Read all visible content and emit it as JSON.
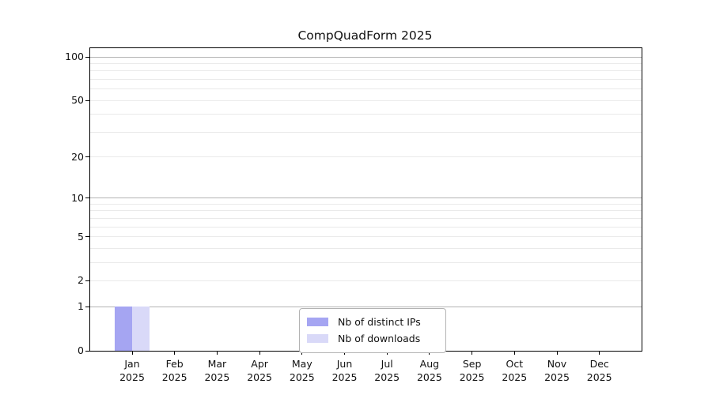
{
  "title": "CompQuadForm 2025",
  "chart_data": {
    "type": "bar",
    "title": "CompQuadForm 2025",
    "categories": [
      "Jan 2025",
      "Feb 2025",
      "Mar 2025",
      "Apr 2025",
      "May 2025",
      "Jun 2025",
      "Jul 2025",
      "Aug 2025",
      "Sep 2025",
      "Oct 2025",
      "Nov 2025",
      "Dec 2025"
    ],
    "month_labels": [
      "Jan",
      "Feb",
      "Mar",
      "Apr",
      "May",
      "Jun",
      "Jul",
      "Aug",
      "Sep",
      "Oct",
      "Nov",
      "Dec"
    ],
    "year_label": "2025",
    "series": [
      {
        "name": "Nb of distinct IPs",
        "color": "#a5a5f2",
        "values": [
          1,
          0,
          0,
          0,
          0,
          0,
          0,
          0,
          0,
          0,
          0,
          0
        ]
      },
      {
        "name": "Nb of downloads",
        "color": "#d9d9f8",
        "values": [
          1,
          0,
          0,
          0,
          0,
          0,
          0,
          0,
          0,
          0,
          0,
          0
        ]
      }
    ],
    "y_axis": {
      "scale": "log1p",
      "tick_values": [
        0,
        1,
        2,
        5,
        10,
        20,
        50,
        100
      ],
      "tick_labels": [
        "0",
        "1",
        "2",
        "5",
        "10",
        "20",
        "50",
        "100"
      ],
      "major_gridlines": [
        1,
        10,
        100
      ],
      "minor_gridlines": [
        2,
        3,
        4,
        5,
        6,
        7,
        8,
        9,
        20,
        30,
        40,
        50,
        60,
        70,
        80,
        90
      ],
      "ylim": [
        0,
        115
      ]
    },
    "grid": true,
    "legend_position": "bottom-center"
  },
  "colors": {
    "grid_major": "#b4b4b4",
    "grid_minor": "#eaeaea",
    "axis": "#000000",
    "background": "#ffffff"
  }
}
